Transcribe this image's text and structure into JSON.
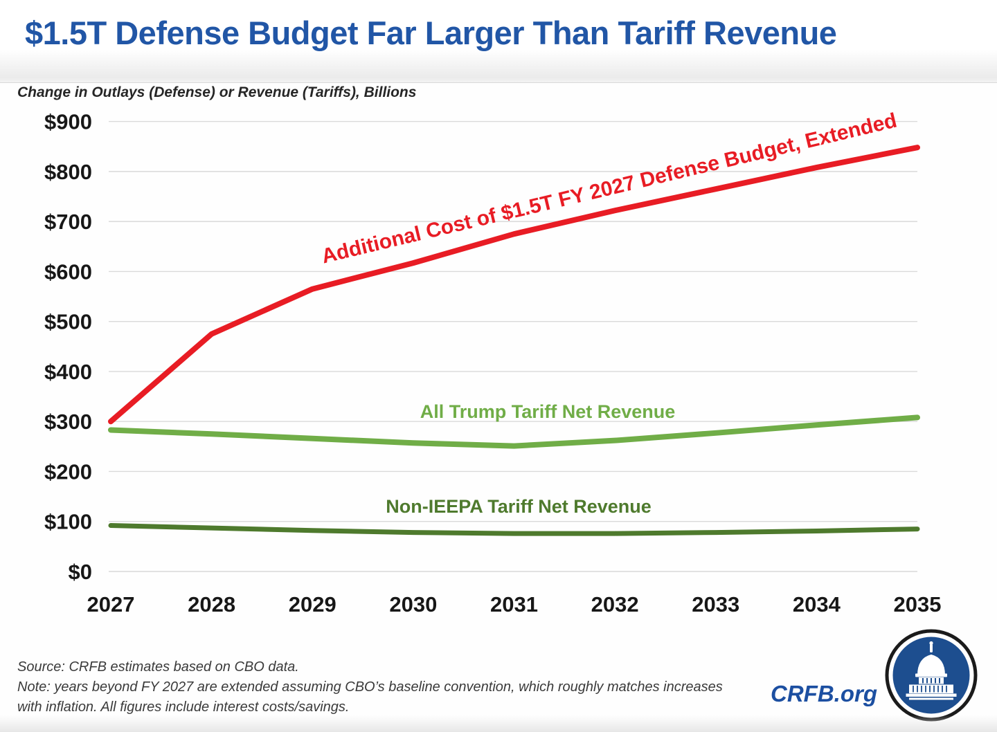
{
  "header": {
    "title": "$1.5T Defense Budget Far Larger Than Tariff Revenue",
    "subtitle": "Change in Outlays (Defense) or Revenue (Tariffs), Billions"
  },
  "chart_data": {
    "type": "line",
    "x": [
      2027,
      2028,
      2029,
      2030,
      2031,
      2032,
      2033,
      2034,
      2035
    ],
    "series": [
      {
        "name": "Additional Cost of $1.5T FY 2027 Defense Budget, Extended",
        "color": "#e81c24",
        "values": [
          300,
          475,
          565,
          617,
          675,
          722,
          765,
          808,
          848
        ]
      },
      {
        "name": "All Trump Tariff Net Revenue",
        "color": "#70ad47",
        "values": [
          283,
          275,
          266,
          257,
          251,
          262,
          277,
          293,
          308
        ]
      },
      {
        "name": "Non-IEEPA Tariff Net Revenue",
        "color": "#4e7a2d",
        "values": [
          92,
          87,
          82,
          78,
          76,
          76,
          78,
          81,
          85
        ]
      }
    ],
    "title": "$1.5T Defense Budget Far Larger Than Tariff Revenue",
    "xlabel": "",
    "ylabel": "Change in Outlays (Defense) or Revenue (Tariffs), Billions",
    "ylim": [
      0,
      900
    ],
    "ytick_step": 100,
    "ytick_prefix": "$",
    "grid": true,
    "legend": "inline-labels-on-lines"
  },
  "footer": {
    "source": "Source: CRFB estimates based on CBO data.",
    "note_line1": "Note: years beyond FY 2027 are extended assuming CBO’s baseline convention, which roughly matches increases",
    "note_line2": "with inflation. All figures include interest costs/savings.",
    "site": "CRFB.org"
  },
  "colors": {
    "title_blue": "#2156a6",
    "crfb_blue": "#1c4fa1",
    "defense_red": "#e81c24",
    "tariff_light_green": "#70ad47",
    "tariff_dark_green": "#4e7a2d",
    "gridline": "#d9d9d9",
    "axis_text": "#171717",
    "logo_blue": "#1d4e8f"
  }
}
